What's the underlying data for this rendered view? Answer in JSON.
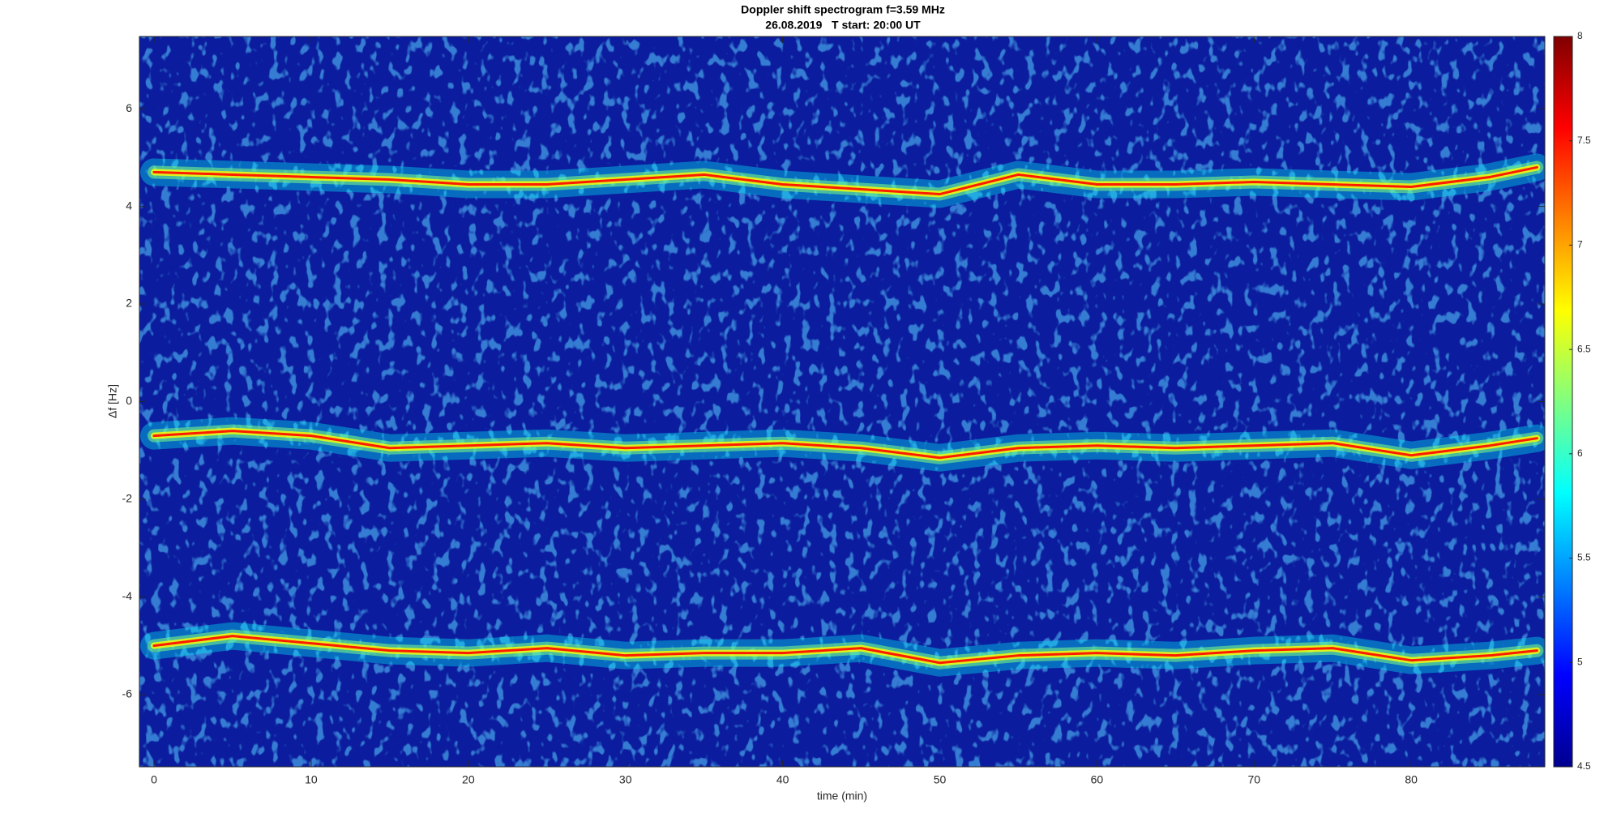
{
  "chart_data": {
    "type": "spectrogram",
    "title": "Doppler shift spectrogram f=3.59 MHz",
    "subtitle": "26.08.2019   T start: 20:00 UT",
    "x_label": "time (min)",
    "y_label": "Δf [Hz]",
    "x": [
      0,
      5,
      10,
      15,
      20,
      25,
      30,
      35,
      40,
      45,
      50,
      55,
      60,
      65,
      70,
      75,
      80,
      85,
      88
    ],
    "series": [
      {
        "color": "#ff1a00",
        "values": [
          4.7,
          4.65,
          4.6,
          4.55,
          4.45,
          4.45,
          4.55,
          4.65,
          4.45,
          4.35,
          4.25,
          4.65,
          4.45,
          4.45,
          4.5,
          4.45,
          4.4,
          4.6,
          4.8
        ]
      },
      {
        "color": "#ff1a00",
        "values": [
          -0.7,
          -0.6,
          -0.7,
          -0.95,
          -0.9,
          -0.85,
          -0.95,
          -0.9,
          -0.85,
          -0.95,
          -1.15,
          -0.95,
          -0.9,
          -0.95,
          -0.9,
          -0.85,
          -1.1,
          -0.9,
          -0.75
        ]
      },
      {
        "color": "#ff1a00",
        "values": [
          -5.0,
          -4.8,
          -4.95,
          -5.1,
          -5.15,
          -5.05,
          -5.2,
          -5.15,
          -5.15,
          -5.05,
          -5.35,
          -5.2,
          -5.15,
          -5.2,
          -5.1,
          -5.05,
          -5.3,
          -5.2,
          -5.1
        ]
      }
    ],
    "xlim": [
      -0.93,
      88.5
    ],
    "xticks": [
      0,
      10,
      20,
      30,
      40,
      50,
      60,
      70,
      80
    ],
    "ylim": [
      -7.48,
      7.48
    ],
    "yticks": [
      -6,
      -4,
      -2,
      0,
      2,
      4,
      6
    ],
    "clim": [
      4.5,
      8
    ],
    "cticks": [
      4.5,
      5,
      5.5,
      6,
      6.5,
      7,
      7.5,
      8
    ],
    "colormap": [
      "#00008f",
      "#0000ff",
      "#0080ff",
      "#00ffff",
      "#80ff80",
      "#ffff00",
      "#ff8000",
      "#ff0000",
      "#800000"
    ],
    "background": "#0b1d9e",
    "grid": false
  }
}
